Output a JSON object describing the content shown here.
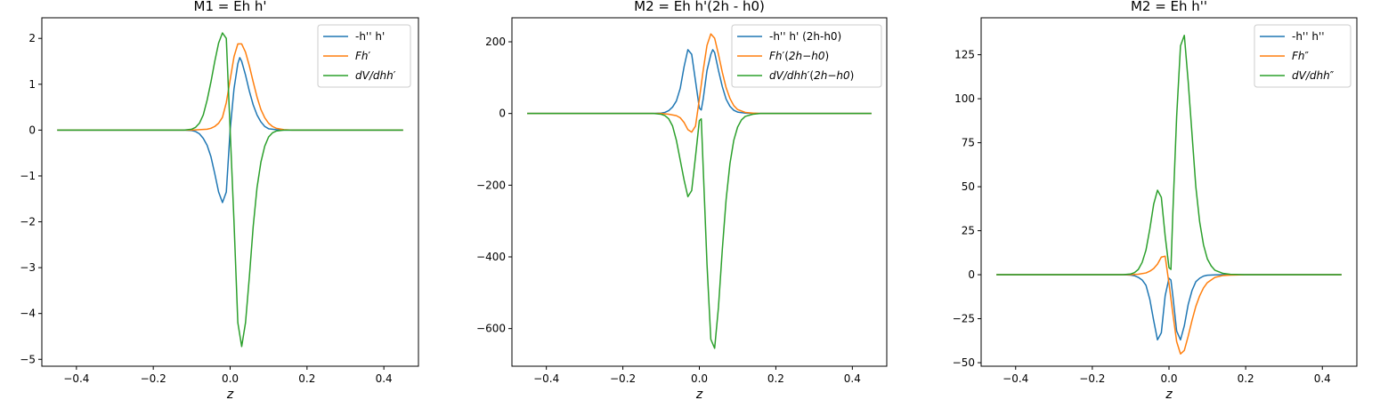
{
  "figure": {
    "colors": {
      "blue": "#1f77b4",
      "orange": "#ff7f0e",
      "green": "#2ca02c",
      "frame": "#000000",
      "legend_frame": "#cccccc"
    }
  },
  "chart_data": [
    {
      "type": "line",
      "title": "M1 = Eh h'",
      "xlabel": "z",
      "ylabel": "",
      "xlim": [
        -0.49,
        0.49
      ],
      "ylim": [
        -5.15,
        2.45
      ],
      "xticks": [
        -0.4,
        -0.2,
        0.0,
        0.2,
        0.4
      ],
      "xtick_labels": [
        "−0.4",
        "−0.2",
        "0.0",
        "0.2",
        "0.4"
      ],
      "yticks": [
        -5,
        -4,
        -3,
        -2,
        -1,
        0,
        1,
        2
      ],
      "ytick_labels": [
        "−5",
        "−4",
        "−3",
        "−2",
        "−1",
        "0",
        "1",
        "2"
      ],
      "grid": false,
      "legend_position": "upper-right",
      "series": [
        {
          "name": "-h'' h'",
          "color": "#1f77b4",
          "points": [
            [
              -0.45,
              0
            ],
            [
              -0.2,
              0
            ],
            [
              -0.12,
              0
            ],
            [
              -0.1,
              -0.01
            ],
            [
              -0.09,
              -0.03
            ],
            [
              -0.08,
              -0.08
            ],
            [
              -0.07,
              -0.18
            ],
            [
              -0.06,
              -0.33
            ],
            [
              -0.05,
              -0.58
            ],
            [
              -0.04,
              -0.95
            ],
            [
              -0.03,
              -1.35
            ],
            [
              -0.02,
              -1.58
            ],
            [
              -0.01,
              -1.35
            ],
            [
              0.0,
              0.0
            ],
            [
              0.01,
              0.9
            ],
            [
              0.02,
              1.45
            ],
            [
              0.025,
              1.58
            ],
            [
              0.03,
              1.5
            ],
            [
              0.04,
              1.2
            ],
            [
              0.05,
              0.85
            ],
            [
              0.06,
              0.55
            ],
            [
              0.07,
              0.33
            ],
            [
              0.08,
              0.18
            ],
            [
              0.09,
              0.08
            ],
            [
              0.1,
              0.03
            ],
            [
              0.12,
              0.01
            ],
            [
              0.14,
              0
            ],
            [
              0.2,
              0
            ],
            [
              0.45,
              0
            ]
          ]
        },
        {
          "name": "Fh′",
          "color": "#ff7f0e",
          "points": [
            [
              -0.45,
              0
            ],
            [
              -0.1,
              0
            ],
            [
              -0.08,
              0.01
            ],
            [
              -0.06,
              0.02
            ],
            [
              -0.05,
              0.04
            ],
            [
              -0.04,
              0.08
            ],
            [
              -0.03,
              0.15
            ],
            [
              -0.02,
              0.28
            ],
            [
              -0.01,
              0.6
            ],
            [
              0.0,
              1.1
            ],
            [
              0.01,
              1.6
            ],
            [
              0.02,
              1.88
            ],
            [
              0.03,
              1.88
            ],
            [
              0.04,
              1.7
            ],
            [
              0.05,
              1.4
            ],
            [
              0.06,
              1.05
            ],
            [
              0.07,
              0.72
            ],
            [
              0.08,
              0.45
            ],
            [
              0.09,
              0.27
            ],
            [
              0.1,
              0.15
            ],
            [
              0.11,
              0.08
            ],
            [
              0.12,
              0.04
            ],
            [
              0.14,
              0.01
            ],
            [
              0.16,
              0
            ],
            [
              0.45,
              0
            ]
          ]
        },
        {
          "name": "dV/dhh′",
          "color": "#2ca02c",
          "points": [
            [
              -0.45,
              0
            ],
            [
              -0.12,
              0
            ],
            [
              -0.1,
              0.02
            ],
            [
              -0.09,
              0.06
            ],
            [
              -0.08,
              0.15
            ],
            [
              -0.07,
              0.33
            ],
            [
              -0.06,
              0.65
            ],
            [
              -0.05,
              1.05
            ],
            [
              -0.04,
              1.5
            ],
            [
              -0.03,
              1.9
            ],
            [
              -0.02,
              2.12
            ],
            [
              -0.01,
              2.0
            ],
            [
              0.0,
              0.0
            ],
            [
              0.01,
              -2.0
            ],
            [
              0.02,
              -4.2
            ],
            [
              0.03,
              -4.72
            ],
            [
              0.04,
              -4.2
            ],
            [
              0.05,
              -3.2
            ],
            [
              0.06,
              -2.1
            ],
            [
              0.07,
              -1.25
            ],
            [
              0.08,
              -0.7
            ],
            [
              0.09,
              -0.35
            ],
            [
              0.1,
              -0.15
            ],
            [
              0.11,
              -0.06
            ],
            [
              0.12,
              -0.02
            ],
            [
              0.14,
              0
            ],
            [
              0.45,
              0
            ]
          ]
        }
      ]
    },
    {
      "type": "line",
      "title": "M2 = Eh h'(2h - h0)",
      "xlabel": "z",
      "ylabel": "",
      "xlim": [
        -0.49,
        0.49
      ],
      "ylim": [
        -705,
        267
      ],
      "xticks": [
        -0.4,
        -0.2,
        0.0,
        0.2,
        0.4
      ],
      "xtick_labels": [
        "−0.4",
        "−0.2",
        "0.0",
        "0.2",
        "0.4"
      ],
      "yticks": [
        -600,
        -400,
        -200,
        0,
        200
      ],
      "ytick_labels": [
        "−600",
        "−400",
        "−200",
        "0",
        "200"
      ],
      "grid": false,
      "legend_position": "upper-right",
      "series": [
        {
          "name": "-h'' h' (2h-h0)",
          "color": "#1f77b4",
          "points": [
            [
              -0.45,
              0
            ],
            [
              -0.12,
              0
            ],
            [
              -0.1,
              1
            ],
            [
              -0.09,
              3
            ],
            [
              -0.08,
              8
            ],
            [
              -0.07,
              18
            ],
            [
              -0.06,
              35
            ],
            [
              -0.05,
              70
            ],
            [
              -0.04,
              130
            ],
            [
              -0.03,
              178
            ],
            [
              -0.02,
              165
            ],
            [
              -0.01,
              90
            ],
            [
              0.0,
              15
            ],
            [
              0.005,
              10
            ],
            [
              0.01,
              40
            ],
            [
              0.02,
              120
            ],
            [
              0.03,
              165
            ],
            [
              0.035,
              178
            ],
            [
              0.04,
              170
            ],
            [
              0.05,
              120
            ],
            [
              0.06,
              75
            ],
            [
              0.07,
              40
            ],
            [
              0.08,
              20
            ],
            [
              0.09,
              9
            ],
            [
              0.1,
              4
            ],
            [
              0.12,
              1
            ],
            [
              0.14,
              0
            ],
            [
              0.45,
              0
            ]
          ]
        },
        {
          "name": "Fh′(2h−h0)",
          "color": "#ff7f0e",
          "points": [
            [
              -0.45,
              0
            ],
            [
              -0.1,
              0
            ],
            [
              -0.08,
              -2
            ],
            [
              -0.06,
              -6
            ],
            [
              -0.05,
              -12
            ],
            [
              -0.04,
              -25
            ],
            [
              -0.03,
              -45
            ],
            [
              -0.02,
              -52
            ],
            [
              -0.01,
              -35
            ],
            [
              0.0,
              40
            ],
            [
              0.01,
              120
            ],
            [
              0.02,
              190
            ],
            [
              0.03,
              222
            ],
            [
              0.04,
              210
            ],
            [
              0.05,
              165
            ],
            [
              0.06,
              115
            ],
            [
              0.07,
              72
            ],
            [
              0.08,
              42
            ],
            [
              0.09,
              22
            ],
            [
              0.1,
              11
            ],
            [
              0.12,
              3
            ],
            [
              0.14,
              1
            ],
            [
              0.16,
              0
            ],
            [
              0.45,
              0
            ]
          ]
        },
        {
          "name": "dV/dhh′(2h−h0)",
          "color": "#2ca02c",
          "points": [
            [
              -0.45,
              0
            ],
            [
              -0.12,
              0
            ],
            [
              -0.1,
              -2
            ],
            [
              -0.09,
              -6
            ],
            [
              -0.08,
              -15
            ],
            [
              -0.07,
              -35
            ],
            [
              -0.06,
              -75
            ],
            [
              -0.05,
              -130
            ],
            [
              -0.04,
              -185
            ],
            [
              -0.03,
              -232
            ],
            [
              -0.02,
              -215
            ],
            [
              -0.01,
              -120
            ],
            [
              0.0,
              -20
            ],
            [
              0.005,
              -15
            ],
            [
              0.01,
              -150
            ],
            [
              0.02,
              -420
            ],
            [
              0.03,
              -630
            ],
            [
              0.04,
              -655
            ],
            [
              0.05,
              -540
            ],
            [
              0.06,
              -380
            ],
            [
              0.07,
              -240
            ],
            [
              0.08,
              -140
            ],
            [
              0.09,
              -75
            ],
            [
              0.1,
              -38
            ],
            [
              0.11,
              -18
            ],
            [
              0.12,
              -8
            ],
            [
              0.14,
              -2
            ],
            [
              0.16,
              0
            ],
            [
              0.45,
              0
            ]
          ]
        }
      ]
    },
    {
      "type": "line",
      "title": "M2 = Eh h''",
      "xlabel": "z",
      "ylabel": "",
      "xlim": [
        -0.49,
        0.49
      ],
      "ylim": [
        -52,
        146
      ],
      "xticks": [
        -0.4,
        -0.2,
        0.0,
        0.2,
        0.4
      ],
      "xtick_labels": [
        "−0.4",
        "−0.2",
        "0.0",
        "0.2",
        "0.4"
      ],
      "yticks": [
        -50,
        -25,
        0,
        25,
        50,
        75,
        100,
        125
      ],
      "ytick_labels": [
        "−50",
        "−25",
        "0",
        "25",
        "50",
        "75",
        "100",
        "125"
      ],
      "grid": false,
      "legend_position": "upper-right",
      "series": [
        {
          "name": "-h'' h''",
          "color": "#1f77b4",
          "points": [
            [
              -0.45,
              0
            ],
            [
              -0.12,
              0
            ],
            [
              -0.1,
              -0.2
            ],
            [
              -0.09,
              -0.6
            ],
            [
              -0.08,
              -1.5
            ],
            [
              -0.07,
              -3
            ],
            [
              -0.06,
              -6
            ],
            [
              -0.05,
              -14
            ],
            [
              -0.04,
              -26
            ],
            [
              -0.03,
              -37
            ],
            [
              -0.02,
              -33
            ],
            [
              -0.01,
              -12
            ],
            [
              0.0,
              -2
            ],
            [
              0.005,
              -3
            ],
            [
              0.01,
              -12
            ],
            [
              0.02,
              -32
            ],
            [
              0.03,
              -37
            ],
            [
              0.04,
              -29
            ],
            [
              0.05,
              -17
            ],
            [
              0.06,
              -9
            ],
            [
              0.07,
              -4
            ],
            [
              0.08,
              -2
            ],
            [
              0.09,
              -0.8
            ],
            [
              0.1,
              -0.3
            ],
            [
              0.12,
              -0.1
            ],
            [
              0.14,
              0
            ],
            [
              0.45,
              0
            ]
          ]
        },
        {
          "name": "Fh″",
          "color": "#ff7f0e",
          "points": [
            [
              -0.45,
              0
            ],
            [
              -0.1,
              0
            ],
            [
              -0.08,
              0.3
            ],
            [
              -0.06,
              1
            ],
            [
              -0.05,
              2
            ],
            [
              -0.04,
              3.5
            ],
            [
              -0.03,
              6
            ],
            [
              -0.02,
              10
            ],
            [
              -0.01,
              10.5
            ],
            [
              0.0,
              -5
            ],
            [
              0.01,
              -22
            ],
            [
              0.02,
              -38
            ],
            [
              0.03,
              -45
            ],
            [
              0.04,
              -43
            ],
            [
              0.05,
              -35
            ],
            [
              0.06,
              -26
            ],
            [
              0.07,
              -18
            ],
            [
              0.08,
              -12
            ],
            [
              0.09,
              -7.5
            ],
            [
              0.1,
              -4.5
            ],
            [
              0.12,
              -1.5
            ],
            [
              0.14,
              -0.5
            ],
            [
              0.16,
              -0.2
            ],
            [
              0.2,
              0
            ],
            [
              0.45,
              0
            ]
          ]
        },
        {
          "name": "dV/dhh″",
          "color": "#2ca02c",
          "points": [
            [
              -0.45,
              0
            ],
            [
              -0.12,
              0
            ],
            [
              -0.1,
              0.4
            ],
            [
              -0.09,
              1.2
            ],
            [
              -0.08,
              3
            ],
            [
              -0.07,
              7
            ],
            [
              -0.06,
              14
            ],
            [
              -0.05,
              26
            ],
            [
              -0.04,
              40
            ],
            [
              -0.03,
              48
            ],
            [
              -0.02,
              44
            ],
            [
              -0.01,
              22
            ],
            [
              0.0,
              4
            ],
            [
              0.005,
              3
            ],
            [
              0.01,
              35
            ],
            [
              0.02,
              90
            ],
            [
              0.03,
              130
            ],
            [
              0.04,
              136
            ],
            [
              0.05,
              110
            ],
            [
              0.06,
              80
            ],
            [
              0.07,
              50
            ],
            [
              0.08,
              30
            ],
            [
              0.09,
              17
            ],
            [
              0.1,
              9
            ],
            [
              0.11,
              5
            ],
            [
              0.12,
              2.5
            ],
            [
              0.14,
              0.8
            ],
            [
              0.16,
              0.2
            ],
            [
              0.2,
              0
            ],
            [
              0.45,
              0
            ]
          ]
        }
      ]
    }
  ]
}
